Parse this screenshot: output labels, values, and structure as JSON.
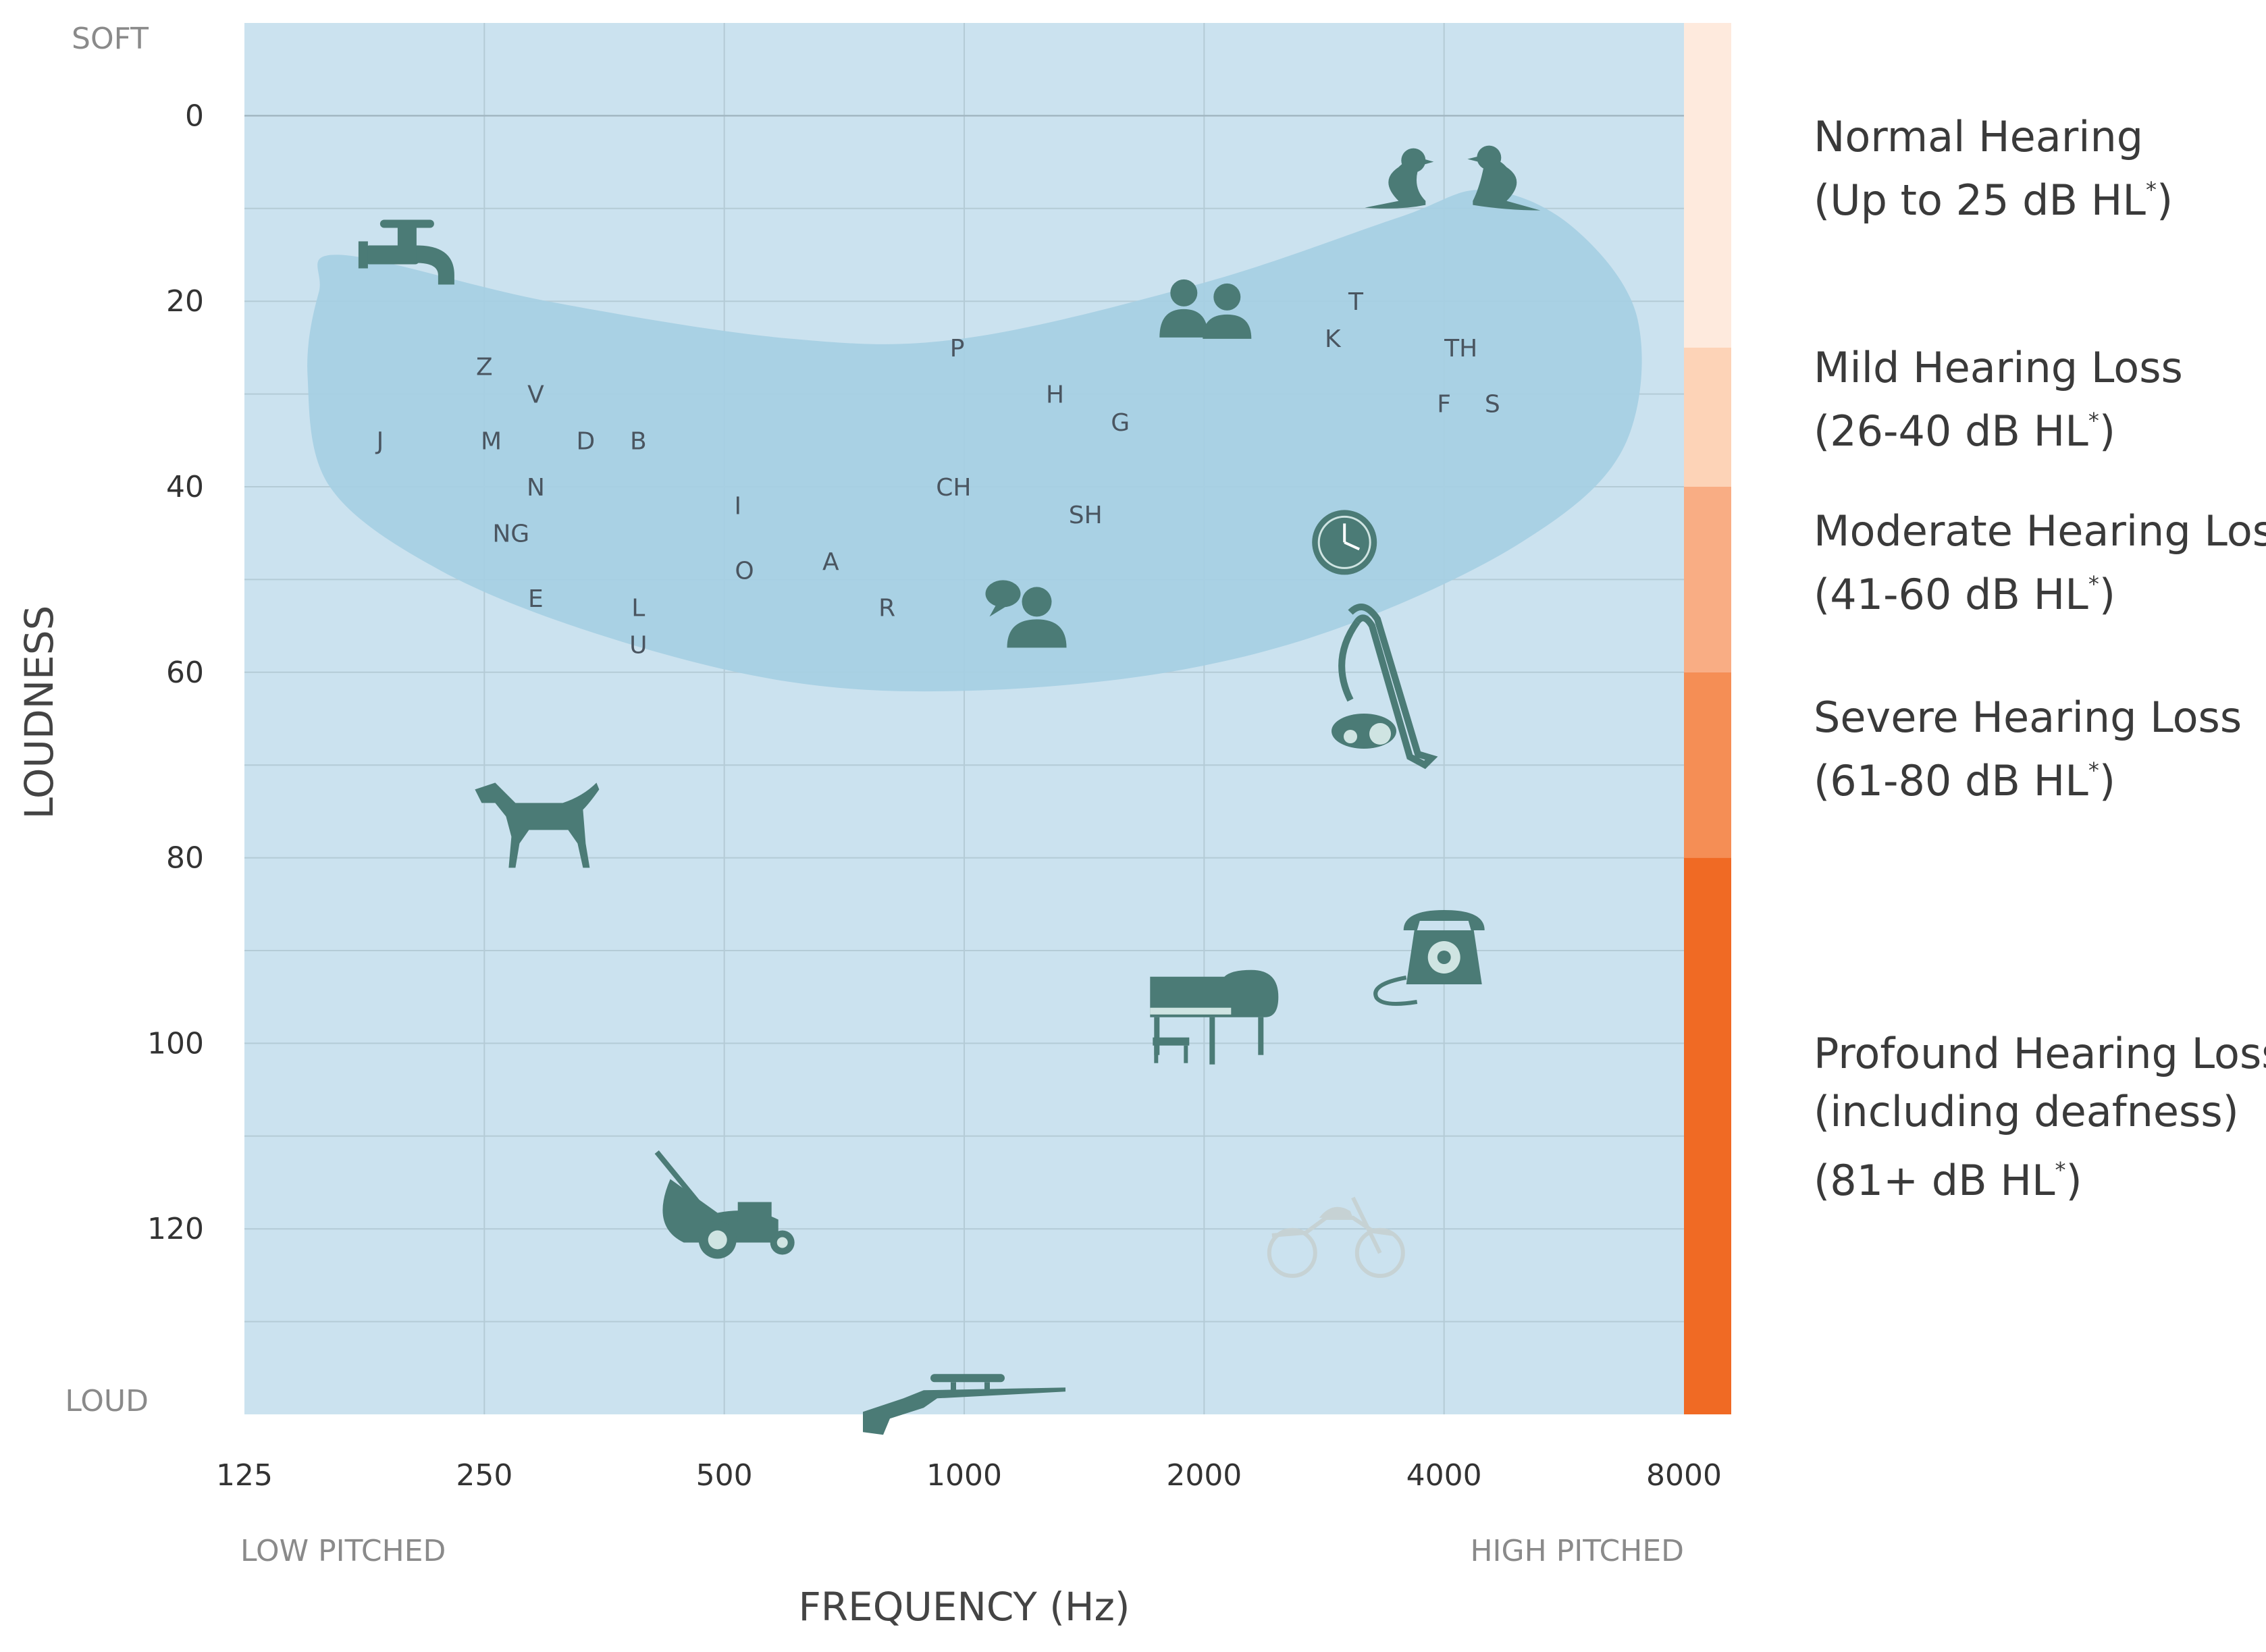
{
  "chart_data": {
    "type": "scatter",
    "description_labels": {
      "top": "SOFT",
      "bottom": "LOUD",
      "left": "LOW PITCHED",
      "right": "HIGH PITCHED"
    },
    "xlabel": "FREQUENCY (Hz)",
    "ylabel": "LOUDNESS",
    "x_scale": "log2",
    "xlim": [
      125,
      8000
    ],
    "x_ticks": [
      125,
      250,
      500,
      1000,
      2000,
      4000,
      8000
    ],
    "x_tick_labels": [
      "125",
      "250",
      "500",
      "1000",
      "2000",
      "4000",
      "8000"
    ],
    "ylim": [
      -10,
      140
    ],
    "y_inverted": true,
    "y_ticks": [
      0,
      20,
      40,
      60,
      80,
      100,
      120
    ],
    "y_tick_labels": [
      "0",
      "20",
      "40",
      "60",
      "80",
      "100",
      "120"
    ],
    "grid": true,
    "speech_banana": {
      "color": "#a6cfe3",
      "outline": [
        [
          165,
          15
        ],
        [
          300,
          20
        ],
        [
          600,
          24
        ],
        [
          1000,
          24
        ],
        [
          2000,
          18
        ],
        [
          3500,
          11
        ],
        [
          4500,
          8
        ],
        [
          5800,
          12
        ],
        [
          7000,
          22
        ],
        [
          6700,
          36
        ],
        [
          5000,
          46
        ],
        [
          3000,
          55
        ],
        [
          1800,
          60
        ],
        [
          1000,
          62
        ],
        [
          600,
          61
        ],
        [
          350,
          56
        ],
        [
          220,
          49
        ],
        [
          160,
          40
        ],
        [
          150,
          28
        ],
        [
          155,
          19
        ]
      ]
    },
    "phonemes": [
      {
        "label": "Z",
        "x": 250,
        "y": 27
      },
      {
        "label": "V",
        "x": 290,
        "y": 30
      },
      {
        "label": "J",
        "x": 185,
        "y": 35
      },
      {
        "label": "M",
        "x": 255,
        "y": 35
      },
      {
        "label": "D",
        "x": 335,
        "y": 35
      },
      {
        "label": "B",
        "x": 390,
        "y": 35
      },
      {
        "label": "N",
        "x": 290,
        "y": 40
      },
      {
        "label": "NG",
        "x": 270,
        "y": 45
      },
      {
        "label": "E",
        "x": 290,
        "y": 52
      },
      {
        "label": "L",
        "x": 390,
        "y": 53
      },
      {
        "label": "U",
        "x": 390,
        "y": 57
      },
      {
        "label": "I",
        "x": 520,
        "y": 42
      },
      {
        "label": "O",
        "x": 530,
        "y": 49
      },
      {
        "label": "A",
        "x": 680,
        "y": 48
      },
      {
        "label": "R",
        "x": 800,
        "y": 53
      },
      {
        "label": "P",
        "x": 980,
        "y": 25
      },
      {
        "label": "CH",
        "x": 970,
        "y": 40
      },
      {
        "label": "H",
        "x": 1300,
        "y": 30
      },
      {
        "label": "G",
        "x": 1570,
        "y": 33
      },
      {
        "label": "SH",
        "x": 1420,
        "y": 43
      },
      {
        "label": "T",
        "x": 3100,
        "y": 20
      },
      {
        "label": "K",
        "x": 2900,
        "y": 24
      },
      {
        "label": "TH",
        "x": 4200,
        "y": 25
      },
      {
        "label": "F",
        "x": 4000,
        "y": 31
      },
      {
        "label": "S",
        "x": 4600,
        "y": 31
      }
    ],
    "sounds": [
      {
        "icon": "dripping-faucet-icon",
        "x": 200,
        "y": 15
      },
      {
        "icon": "birds-chirping-icon",
        "x": 4100,
        "y": 7
      },
      {
        "icon": "people-whispering-icon",
        "x": 2000,
        "y": 21
      },
      {
        "icon": "clock-ticking-icon",
        "x": 3000,
        "y": 46
      },
      {
        "icon": "conversation-speech-icon",
        "x": 1200,
        "y": 54
      },
      {
        "icon": "vacuum-cleaner-icon",
        "x": 3300,
        "y": 63
      },
      {
        "icon": "barking-dog-icon",
        "x": 290,
        "y": 77
      },
      {
        "icon": "telephone-ringing-icon",
        "x": 4000,
        "y": 90
      },
      {
        "icon": "piano-icon",
        "x": 2000,
        "y": 95
      },
      {
        "icon": "lawn-mower-icon",
        "x": 500,
        "y": 119
      },
      {
        "icon": "motorcycle-icon",
        "x": 2900,
        "y": 121
      },
      {
        "icon": "rifle-shot-icon",
        "x": 1000,
        "y": 139
      }
    ],
    "legend": {
      "placement": "right",
      "bands": [
        {
          "name_line1": "Normal Hearing",
          "name_line2": "(Up to 25 dB HL",
          "superscript": "*",
          "close": ")",
          "y_from": -10,
          "y_to": 25,
          "color": "#feeadd"
        },
        {
          "name_line1": "Mild Hearing Loss",
          "name_line2": "(26-40 dB HL",
          "superscript": "*",
          "close": ")",
          "y_from": 25,
          "y_to": 40,
          "color": "#fdd3b7"
        },
        {
          "name_line1": "Moderate Hearing Loss",
          "name_line2": "(41-60 dB HL",
          "superscript": "*",
          "close": ")",
          "y_from": 40,
          "y_to": 60,
          "color": "#f9ad84"
        },
        {
          "name_line1": "Severe Hearing Loss",
          "name_line2": "(61-80 dB HL",
          "superscript": "*",
          "close": ")",
          "y_from": 60,
          "y_to": 80,
          "color": "#f58e55"
        },
        {
          "name_line1": "Profound Hearing Loss",
          "name_line2": "(including deafness)",
          "name_line3": "(81+ dB HL",
          "superscript": "*",
          "close": ")",
          "y_from": 80,
          "y_to": 140,
          "color": "#f06a24"
        }
      ]
    },
    "colors": {
      "plot_background": "#cbe2ef",
      "grid": "#b4cbd6",
      "zero_line": "#a2b7c2",
      "icon": "#4b7b76",
      "motorcycle": "#c6d2d4"
    }
  }
}
